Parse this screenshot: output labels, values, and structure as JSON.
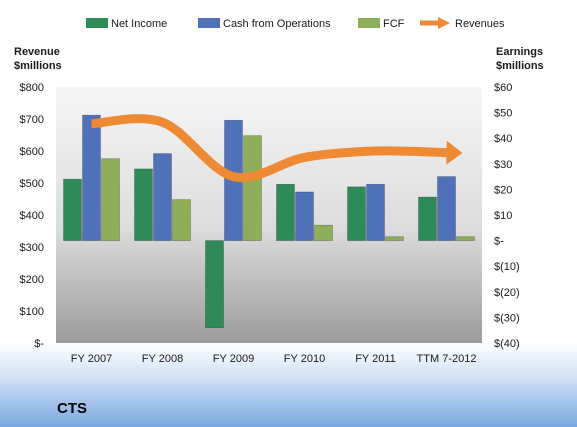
{
  "company": "CTS",
  "colors": {
    "net_income": "#2e8b57",
    "cash_from_operations": "#4f71b8",
    "fcf": "#8fae5a",
    "revenues": "#ee8a34"
  },
  "chart_data": {
    "type": "bar",
    "categories": [
      "FY 2007",
      "FY 2008",
      "FY 2009",
      "FY 2010",
      "FY 2011",
      "TTM 7-2012"
    ],
    "left_axis": {
      "title_line1": "Revenue",
      "title_line2": "$millions",
      "ylim": [
        0,
        800
      ],
      "ticks": [
        {
          "value": 800,
          "label": "$800"
        },
        {
          "value": 700,
          "label": "$700"
        },
        {
          "value": 600,
          "label": "$600"
        },
        {
          "value": 500,
          "label": "$500"
        },
        {
          "value": 400,
          "label": "$400"
        },
        {
          "value": 300,
          "label": "$300"
        },
        {
          "value": 200,
          "label": "$200"
        },
        {
          "value": 100,
          "label": "$100"
        },
        {
          "value": 0,
          "label": "$-"
        }
      ]
    },
    "right_axis": {
      "title_line1": "Earnings",
      "title_line2": "$millions",
      "ylim": [
        -40,
        60
      ],
      "ticks": [
        {
          "value": 60,
          "label": "$60"
        },
        {
          "value": 50,
          "label": "$50"
        },
        {
          "value": 40,
          "label": "$40"
        },
        {
          "value": 30,
          "label": "$30"
        },
        {
          "value": 20,
          "label": "$20"
        },
        {
          "value": 10,
          "label": "$10"
        },
        {
          "value": 0,
          "label": "$-"
        },
        {
          "value": -10,
          "label": "$(10)"
        },
        {
          "value": -20,
          "label": "$(20)"
        },
        {
          "value": -30,
          "label": "$(30)"
        },
        {
          "value": -40,
          "label": "$(40)"
        }
      ]
    },
    "series": [
      {
        "name": "Net Income",
        "axis": "right",
        "type": "bar",
        "values": [
          24,
          28,
          -34,
          22,
          21,
          17
        ]
      },
      {
        "name": "Cash from Operations",
        "axis": "right",
        "type": "bar",
        "values": [
          49,
          34,
          47,
          19,
          22,
          25
        ]
      },
      {
        "name": "FCF",
        "axis": "right",
        "type": "bar",
        "values": [
          32,
          16,
          41,
          6,
          1.5,
          1.5
        ]
      },
      {
        "name": "Revenues",
        "axis": "left",
        "type": "line",
        "values": [
          685,
          690,
          520,
          580,
          600,
          595
        ]
      }
    ],
    "legend_position": "top",
    "grid": false
  }
}
